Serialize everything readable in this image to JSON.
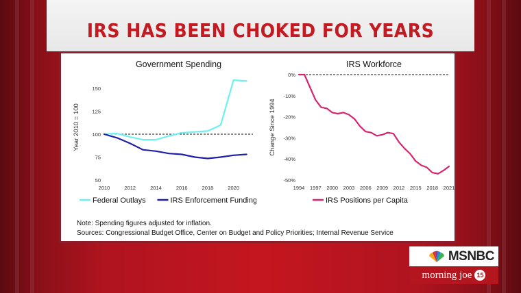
{
  "headline": "IRS HAS BEEN CHOKED FOR YEARS",
  "note": "Note: Spending figures adjusted for inflation.",
  "sources": "Sources: Congressional Budget Office, Center on Budget and Policy Priorities; Internal Revenue Service",
  "network": "MSNBC",
  "show": "morning joe",
  "show_badge": "15",
  "chart_data": [
    {
      "type": "line",
      "title": "Government Spending",
      "ylabel": "Year 2010 = 100",
      "xlim": [
        2010,
        2021.5
      ],
      "ylim": [
        50,
        165
      ],
      "x_ticks": [
        2010,
        2012,
        2014,
        2016,
        2018,
        2020
      ],
      "y_ticks": [
        50,
        75,
        100,
        125,
        150
      ],
      "reference_line": 100,
      "legend_position": "bottom",
      "series": [
        {
          "name": "Federal Outlays",
          "color": "#6ff0f0",
          "x": [
            2010,
            2010.5,
            2011,
            2012,
            2013,
            2014,
            2015,
            2016,
            2017,
            2018,
            2019,
            2020,
            2021
          ],
          "y": [
            100,
            100.5,
            100.7,
            97,
            94,
            94,
            98,
            101.5,
            102.5,
            103.5,
            110,
            159,
            158
          ]
        },
        {
          "name": "IRS Enforcement Funding",
          "color": "#1e1ea8",
          "x": [
            2010,
            2011,
            2012,
            2013,
            2014,
            2015,
            2016,
            2017,
            2018,
            2019,
            2020,
            2021
          ],
          "y": [
            100,
            96,
            90,
            83,
            81.5,
            79,
            78,
            75,
            73.5,
            75,
            77,
            78
          ]
        }
      ]
    },
    {
      "type": "line",
      "title": "IRS Workforce",
      "ylabel": "Change Since 1994",
      "xlim": [
        1994,
        2021
      ],
      "ylim": [
        -50,
        0
      ],
      "x_ticks": [
        1994,
        1997,
        2000,
        2003,
        2006,
        2009,
        2012,
        2015,
        2018,
        2021
      ],
      "y_ticks": [
        "0%",
        "-10%",
        "-20%",
        "-30%",
        "-40%",
        "-50%"
      ],
      "y_tick_values": [
        0,
        -10,
        -20,
        -30,
        -40,
        -50
      ],
      "reference_line": 0,
      "legend_position": "bottom",
      "series": [
        {
          "name": "IRS Positions per Capita",
          "color": "#d6246e",
          "x": [
            1994,
            1995,
            1996,
            1997,
            1998,
            1999,
            2000,
            2001,
            2002,
            2003,
            2004,
            2005,
            2006,
            2007,
            2008,
            2009,
            2010,
            2011,
            2012,
            2013,
            2014,
            2015,
            2016,
            2017,
            2018,
            2019,
            2020,
            2021
          ],
          "y": [
            0,
            0,
            -6,
            -12,
            -15.5,
            -16,
            -18,
            -18.5,
            -18,
            -19,
            -21,
            -24.5,
            -27,
            -27.5,
            -29,
            -28.5,
            -27.5,
            -28,
            -32,
            -35,
            -37.5,
            -41,
            -43,
            -44,
            -46.5,
            -47,
            -45.5,
            -43.5
          ]
        }
      ]
    }
  ]
}
